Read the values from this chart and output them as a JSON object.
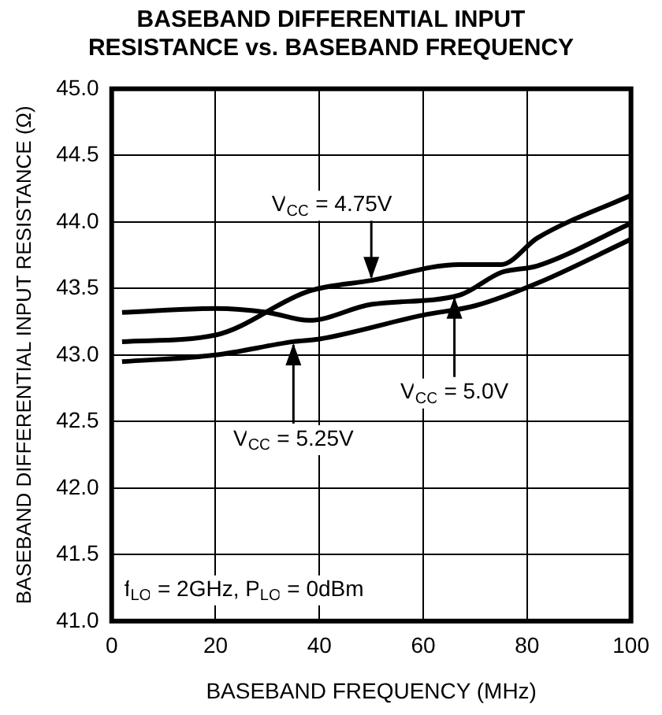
{
  "chart_data": {
    "type": "line",
    "title": "BASEBAND DIFFERENTIAL INPUT RESISTANCE vs. BASEBAND FREQUENCY",
    "xlabel": "BASEBAND FREQUENCY (MHz)",
    "ylabel": "BASEBAND DIFFERENTIAL INPUT RESISTANCE (Ω)",
    "xlim": [
      0,
      100
    ],
    "xticks": [
      0,
      20,
      40,
      60,
      80,
      100
    ],
    "ylim": [
      41,
      45
    ],
    "yticks": [
      {
        "value": 41,
        "label": "41.0"
      },
      {
        "value": 41.5,
        "label": "41.5"
      },
      {
        "value": 42,
        "label": "42.0"
      },
      {
        "value": 42.5,
        "label": "42.5"
      },
      {
        "value": 43,
        "label": "43.0"
      },
      {
        "value": 43.5,
        "label": "43.5"
      },
      {
        "value": 44,
        "label": "44.0"
      },
      {
        "value": 44.5,
        "label": "44.5"
      },
      {
        "value": 45,
        "label": "45.0"
      }
    ],
    "grid": true,
    "legend": false,
    "marker": "none",
    "line_style": "solid",
    "series": [
      {
        "color": "#000000",
        "x": [
          2,
          20,
          38,
          50,
          67,
          75,
          82,
          100
        ],
        "values": [
          43.1,
          43.15,
          43.48,
          43.56,
          43.68,
          43.68,
          43.88,
          44.2
        ]
      },
      {
        "color": "#000000",
        "x": [
          2,
          20,
          30,
          38,
          50,
          67,
          75,
          82,
          100
        ],
        "values": [
          43.32,
          43.35,
          43.32,
          43.26,
          43.38,
          43.45,
          43.62,
          43.67,
          43.99
        ]
      },
      {
        "color": "#000000",
        "x": [
          2,
          20,
          35,
          40,
          60,
          70,
          82,
          100
        ],
        "values": [
          42.95,
          43.0,
          43.1,
          43.12,
          43.3,
          43.37,
          43.54,
          43.87
        ]
      }
    ],
    "annotations": [
      {
        "text": "V$_{CC}$ = 4.75V",
        "x": 50,
        "y": 43.56
      },
      {
        "text": "V$_{CC}$ = 5.0V",
        "x": 66,
        "y": 43.45
      },
      {
        "text": "V$_{CC}$ = 5.25V",
        "x": 35,
        "y": 43.1
      },
      "f$_{LO}$ = 2GHz, P$_{LO}$ = 0dBm"
    ]
  }
}
